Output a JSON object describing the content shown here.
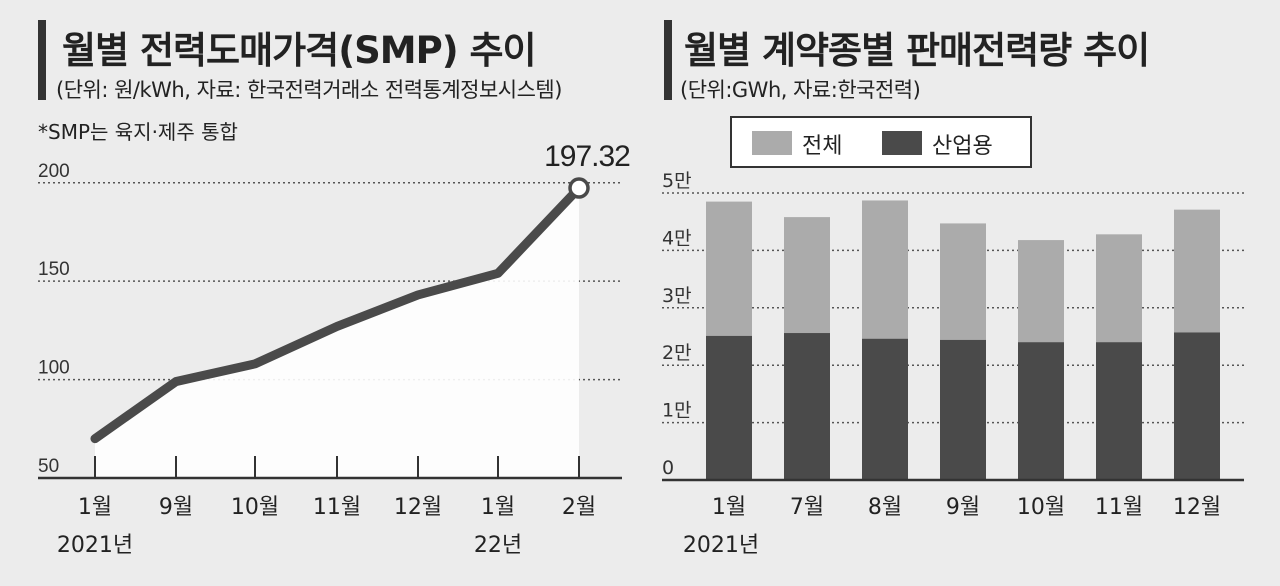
{
  "charts": [
    {
      "title": "월별 전력도매가격(SMP) 추이",
      "subtitle": "(단위: 원/kWh, 자료: 한국전력거래소 전력통계정보시스템)",
      "note": "*SMP는 육지·제주 통합",
      "chart_data": {
        "type": "area",
        "categories": [
          "1월",
          "9월",
          "10월",
          "11월",
          "12월",
          "1월",
          "2월"
        ],
        "year_labels": [
          "2021년",
          "",
          "",
          "",
          "",
          "22년",
          ""
        ],
        "values": [
          70,
          99,
          108,
          127,
          143,
          154,
          197.32
        ],
        "data_labels": [
          "",
          "",
          "",
          "",
          "",
          "",
          "197.32"
        ],
        "y_ticks": [
          50,
          100,
          150,
          200
        ],
        "ylim": [
          50,
          207
        ],
        "grid": true,
        "colors": {
          "line": "#4a4a4a",
          "fill": "#ffffff"
        }
      }
    },
    {
      "title": "월별 계약종별 판매전력량 추이",
      "subtitle": "(단위:GWh, 자료:한국전력)",
      "legend": [
        "전체",
        "산업용"
      ],
      "chart_data": {
        "type": "bar",
        "categories": [
          "1월",
          "7월",
          "8월",
          "9월",
          "10월",
          "11월",
          "12월"
        ],
        "year_labels": [
          "2021년",
          "",
          "",
          "",
          "",
          "",
          ""
        ],
        "series": [
          {
            "name": "전체",
            "values": [
              48500,
              45800,
              48700,
              44700,
              41800,
              42800,
              47100
            ],
            "color": "#ababab"
          },
          {
            "name": "산업용",
            "values": [
              25100,
              25600,
              24600,
              24400,
              24000,
              24000,
              25700
            ],
            "color": "#4a4a4a"
          }
        ],
        "y_ticks": [
          "0",
          "1만",
          "2만",
          "3만",
          "4만",
          "5만"
        ],
        "ylim": [
          0,
          50000
        ],
        "grid": true
      }
    }
  ]
}
